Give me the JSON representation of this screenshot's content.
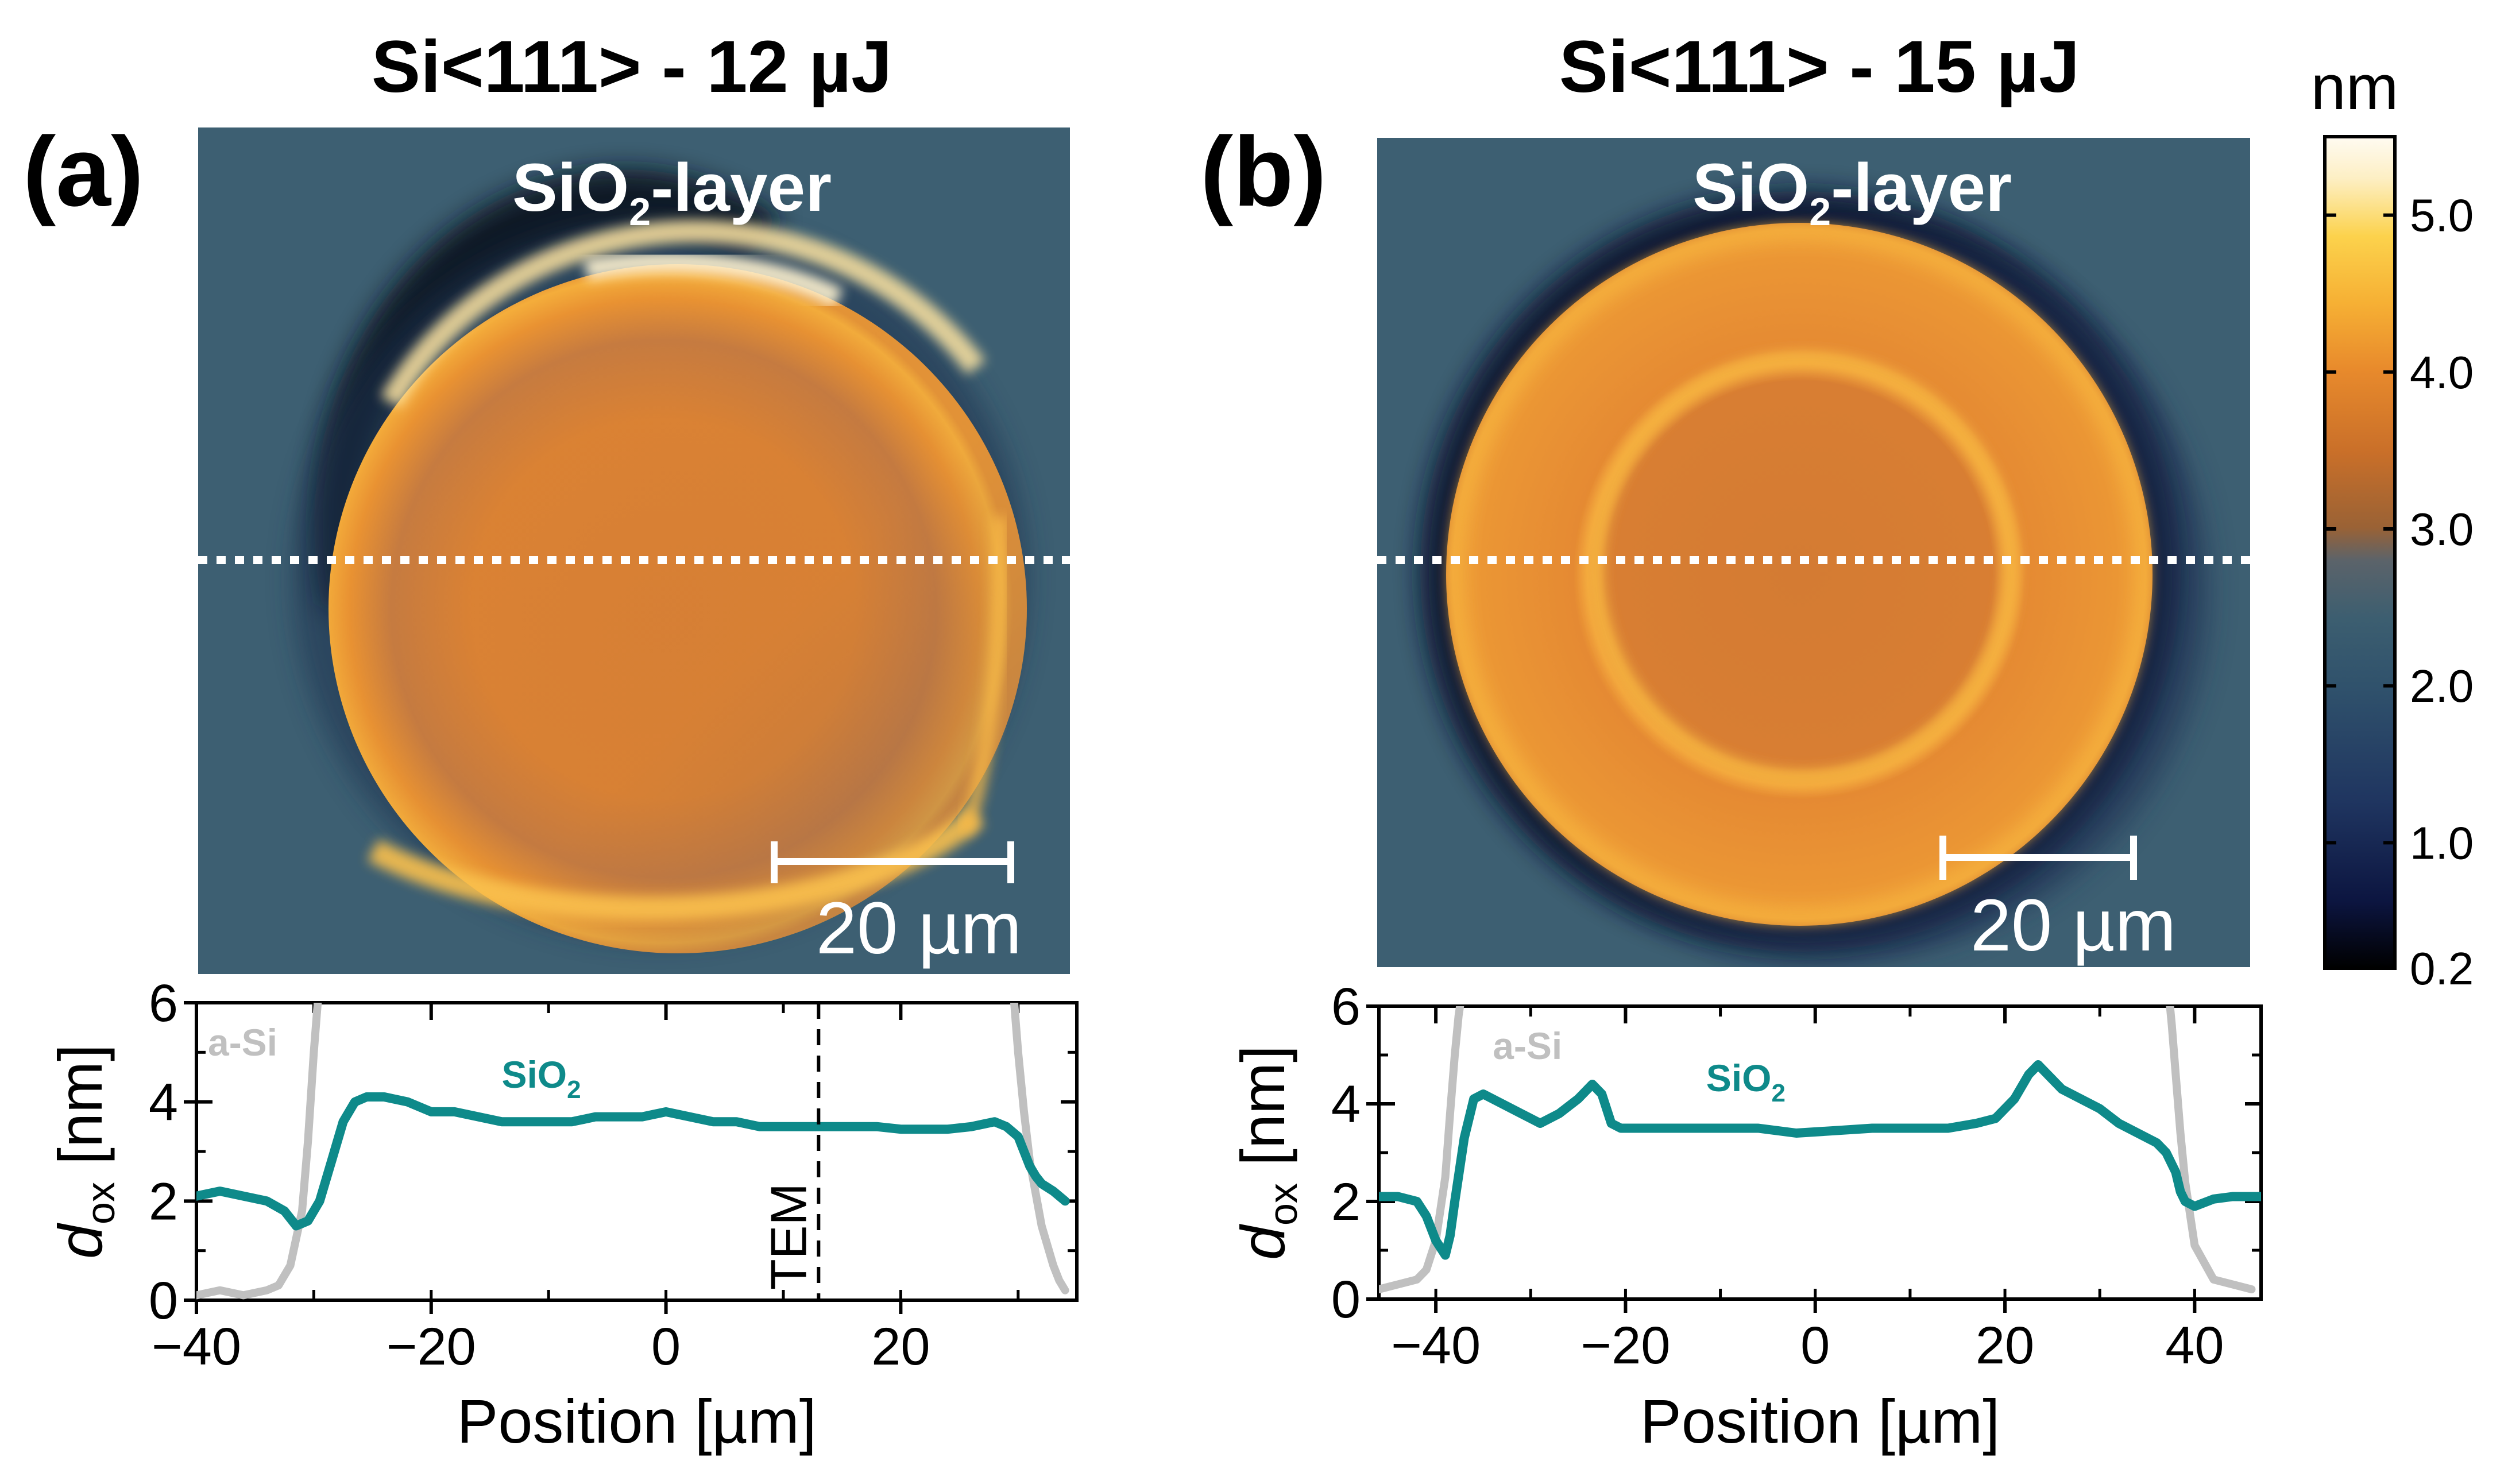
{
  "panels": [
    {
      "id": "a",
      "label": "(a)",
      "title": "Si<111> - 12 µJ",
      "map_label": "SiO",
      "map_label_sub": "2",
      "map_label_suffix": "-layer",
      "scale_bar_label": "20 µm"
    },
    {
      "id": "b",
      "label": "(b)",
      "title": "Si<111> - 15 µJ",
      "map_label": "SiO",
      "map_label_sub": "2",
      "map_label_suffix": "-layer",
      "scale_bar_label": "20 µm"
    }
  ],
  "colorbar": {
    "unit": "nm",
    "ticks": [
      "5.0",
      "4.0",
      "3.0",
      "2.0",
      "1.0",
      "0.2"
    ],
    "tick_values": [
      5.0,
      4.0,
      3.0,
      2.0,
      1.0,
      0.2
    ],
    "range": [
      0.2,
      5.5
    ],
    "colormap": [
      "#000000",
      "#0f1c4a",
      "#2a3f62",
      "#355a6f",
      "#53656e",
      "#a06330",
      "#d0782a",
      "#ee9530",
      "#fbc742",
      "#fde9b8",
      "#fffaf0"
    ]
  },
  "chart_data": [
    {
      "type": "line",
      "panel": "a",
      "xlabel": "Position [µm]",
      "ylabel": "d",
      "ylabel_sub": "ox",
      "ylabel_suffix": " [nm]",
      "xlim": [
        -40,
        35
      ],
      "ylim": [
        0,
        6
      ],
      "xticks": [
        -40,
        -20,
        0,
        20
      ],
      "xtick_labels": [
        "−40",
        "−20",
        "0",
        "20"
      ],
      "yticks": [
        0,
        2,
        4,
        6
      ],
      "ytick_labels": [
        "0",
        "2",
        "4",
        "6"
      ],
      "annotation": {
        "text": "TEM",
        "x": 13
      },
      "series": [
        {
          "name": "a-Si",
          "color": "#c0c0c0",
          "x": [
            -40,
            -38,
            -36,
            -34,
            -33,
            -32,
            -31,
            -30.5,
            -30,
            -29.6,
            29.6,
            30,
            30.5,
            31,
            32,
            33,
            33.5,
            34
          ],
          "y": [
            0.1,
            0.2,
            0.1,
            0.2,
            0.3,
            0.7,
            1.8,
            3.2,
            5.0,
            6.2,
            6.2,
            5.0,
            3.8,
            2.8,
            1.5,
            0.7,
            0.4,
            0.2
          ]
        },
        {
          "name": "SiO2",
          "label_main": "SiO",
          "label_sub": "2",
          "color": "#0e8a8a",
          "x": [
            -40,
            -38,
            -36,
            -34,
            -32.5,
            -31.5,
            -30.5,
            -29.5,
            -28.5,
            -27.5,
            -26.5,
            -25.5,
            -24,
            -22,
            -20,
            -18,
            -16,
            -14,
            -12,
            -10,
            -8,
            -6,
            -4,
            -2,
            0,
            2,
            4,
            6,
            8,
            10,
            12,
            14,
            16,
            18,
            20,
            22,
            24,
            26,
            27,
            28,
            29,
            30,
            30.5,
            31,
            31.5,
            32,
            33,
            34
          ],
          "y": [
            2.1,
            2.2,
            2.1,
            2.0,
            1.8,
            1.5,
            1.6,
            2.0,
            2.8,
            3.6,
            4.0,
            4.1,
            4.1,
            4.0,
            3.8,
            3.8,
            3.7,
            3.6,
            3.6,
            3.6,
            3.6,
            3.7,
            3.7,
            3.7,
            3.8,
            3.7,
            3.6,
            3.6,
            3.5,
            3.5,
            3.5,
            3.5,
            3.5,
            3.5,
            3.45,
            3.45,
            3.45,
            3.5,
            3.55,
            3.6,
            3.5,
            3.3,
            3.0,
            2.7,
            2.5,
            2.35,
            2.2,
            2.0
          ]
        }
      ]
    },
    {
      "type": "line",
      "panel": "b",
      "xlabel": "Position [µm]",
      "ylabel": "d",
      "ylabel_sub": "ox",
      "ylabel_suffix": " [nm]",
      "xlim": [
        -46,
        47
      ],
      "ylim": [
        0,
        6
      ],
      "xticks": [
        -40,
        -20,
        0,
        20,
        40
      ],
      "xtick_labels": [
        "−40",
        "−20",
        "0",
        "20",
        "40"
      ],
      "yticks": [
        0,
        2,
        4,
        6
      ],
      "ytick_labels": [
        "0",
        "2",
        "4",
        "6"
      ],
      "series": [
        {
          "name": "a-Si",
          "color": "#c0c0c0",
          "x": [
            -46,
            -44,
            -42,
            -41,
            -40,
            -39,
            -38.5,
            -38,
            -37.6,
            -37.3,
            37.3,
            37.6,
            38,
            38.5,
            39,
            40,
            42,
            44,
            46
          ],
          "y": [
            0.2,
            0.3,
            0.4,
            0.6,
            1.2,
            2.5,
            3.8,
            5.0,
            5.8,
            6.2,
            6.2,
            5.6,
            4.6,
            3.4,
            2.4,
            1.1,
            0.4,
            0.3,
            0.2
          ]
        },
        {
          "name": "SiO2",
          "label_main": "SiO",
          "label_sub": "2",
          "color": "#0e8a8a",
          "x": [
            -46,
            -44,
            -42,
            -41,
            -40,
            -39,
            -38.5,
            -38,
            -37,
            -36,
            -35,
            -33,
            -31,
            -29,
            -27,
            -25,
            -23.5,
            -22.5,
            -21.5,
            -20.5,
            -18,
            -14,
            -10,
            -6,
            -2,
            2,
            6,
            10,
            14,
            17,
            19,
            21,
            22.5,
            23.5,
            24.5,
            26,
            28,
            30,
            32,
            34,
            35,
            36,
            37,
            38,
            38.5,
            39,
            40,
            42,
            44,
            47
          ],
          "y": [
            2.1,
            2.1,
            2.0,
            1.7,
            1.2,
            0.9,
            1.3,
            2.0,
            3.3,
            4.1,
            4.2,
            4.0,
            3.8,
            3.6,
            3.8,
            4.1,
            4.4,
            4.2,
            3.6,
            3.5,
            3.5,
            3.5,
            3.5,
            3.5,
            3.4,
            3.45,
            3.5,
            3.5,
            3.5,
            3.6,
            3.7,
            4.1,
            4.6,
            4.8,
            4.6,
            4.3,
            4.1,
            3.9,
            3.6,
            3.4,
            3.3,
            3.2,
            3.0,
            2.6,
            2.2,
            2.0,
            1.9,
            2.05,
            2.1,
            2.1
          ]
        }
      ]
    }
  ]
}
